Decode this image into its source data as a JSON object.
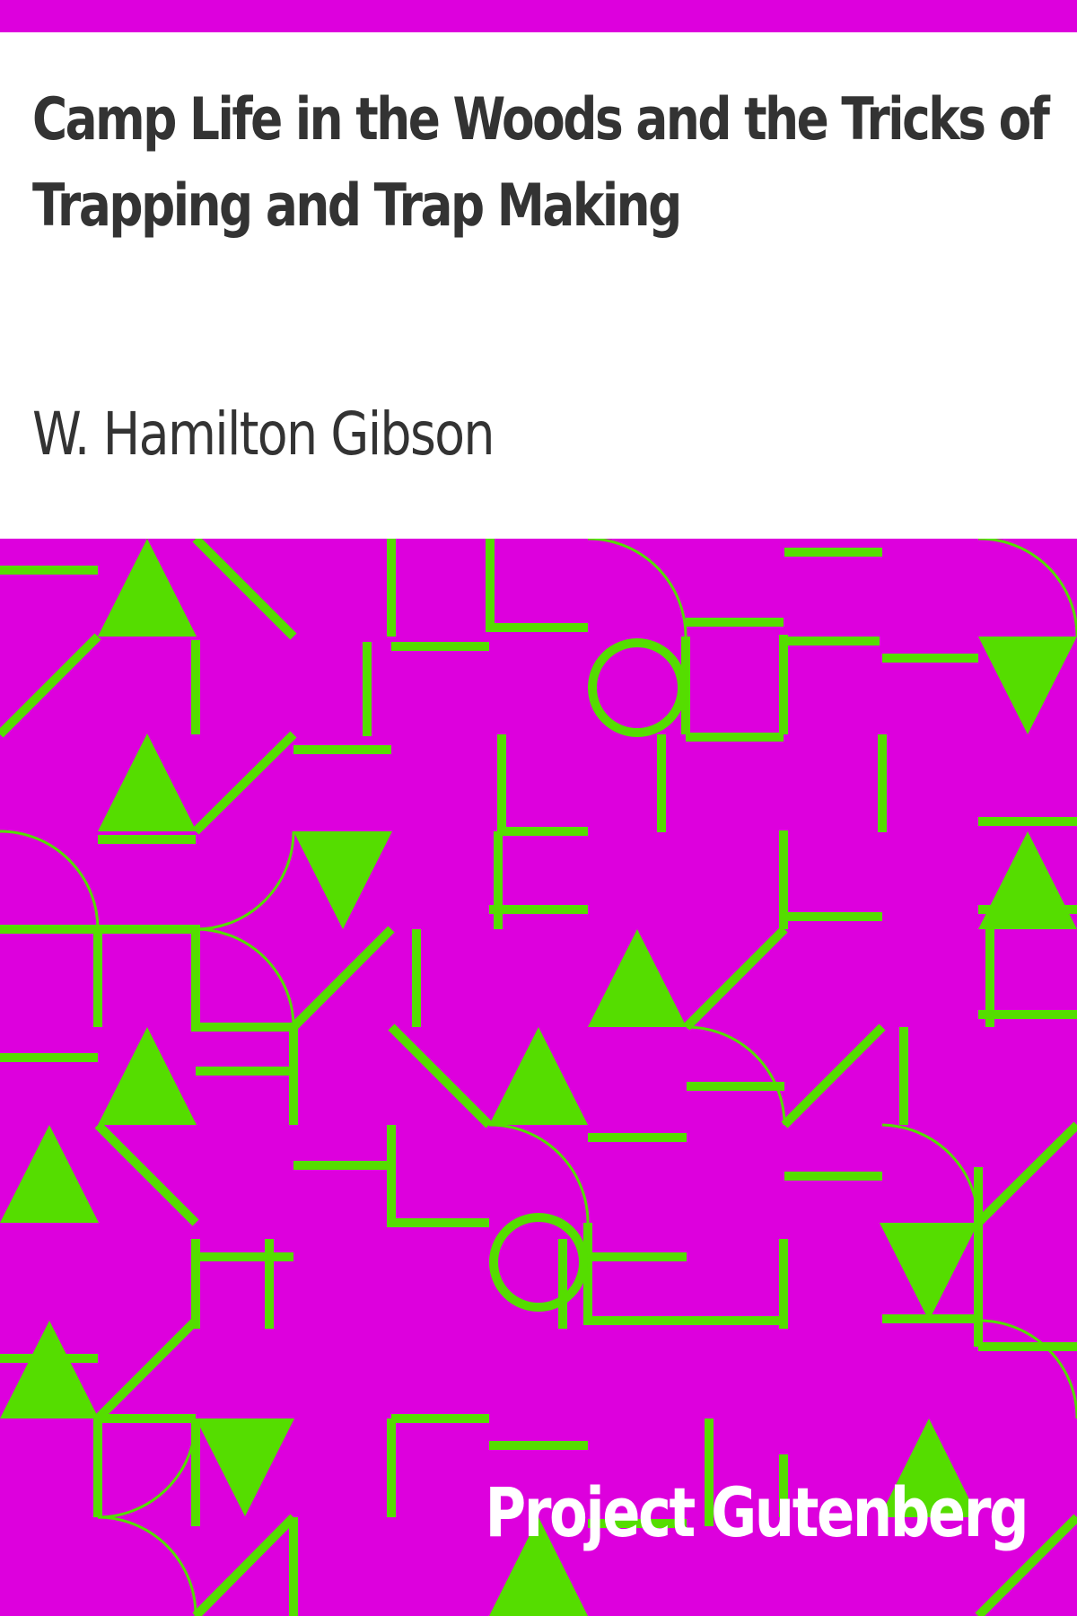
{
  "cover": {
    "title": "Camp Life in the Woods and the Tricks of Trapping and Trap Making",
    "title_lines": [
      "Camp Life in the Woods and the Tricks of",
      "Trapping and Trap Making"
    ],
    "author": "W. Hamilton Gibson",
    "publisher": "Project Gutenberg",
    "colors": {
      "background": "#ffffff",
      "band": "#dd00dd",
      "pattern": "#55dd00",
      "title_text": "#333333",
      "publisher_text": "#ffffff"
    },
    "pattern_motifs": [
      "triangle-up",
      "triangle-down",
      "diagonal-line",
      "horizontal-bar",
      "vertical-bar",
      "quarter-arc",
      "circle",
      "corner-bracket"
    ]
  }
}
